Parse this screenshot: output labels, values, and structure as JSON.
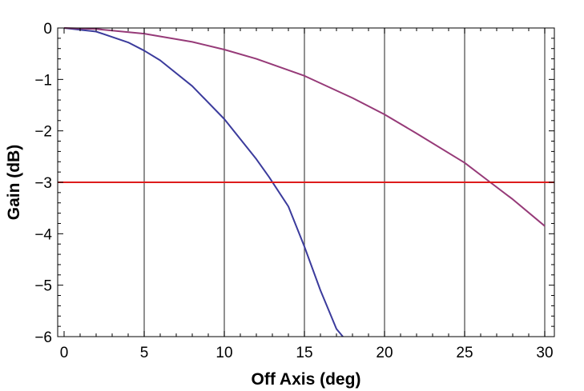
{
  "chart_data": {
    "type": "line",
    "xlabel": "Off Axis (deg)",
    "ylabel": "Gain (dB)",
    "xlim": [
      -0.4,
      30.6
    ],
    "ylim": [
      -6,
      0
    ],
    "x_ticks": [
      0,
      5,
      10,
      15,
      20,
      25,
      30
    ],
    "x_tick_labels": [
      "0",
      "5",
      "10",
      "15",
      "20",
      "25",
      "30"
    ],
    "y_ticks": [
      0,
      -1,
      -2,
      -3,
      -4,
      -5,
      -6
    ],
    "y_tick_labels": [
      "0",
      "−1",
      "−2",
      "−3",
      "−4",
      "−5",
      "−6"
    ],
    "vertical_gridlines_x": [
      5,
      10,
      15,
      20,
      25,
      30
    ],
    "horizontal_reference": {
      "y": -3,
      "color": "#dd1c1c"
    },
    "series": [
      {
        "color": "#3b3b9c",
        "x": [
          0,
          2,
          4,
          5,
          6,
          8,
          10,
          12,
          12.8,
          14,
          15,
          16,
          17,
          17.4
        ],
        "y": [
          0,
          -0.07,
          -0.28,
          -0.44,
          -0.63,
          -1.13,
          -1.77,
          -2.55,
          -2.9,
          -3.47,
          -4.25,
          -5.1,
          -5.85,
          -6.0
        ]
      },
      {
        "color": "#963a78",
        "x": [
          0,
          2,
          5,
          8,
          10,
          12,
          15,
          18,
          20,
          22,
          25,
          26.6,
          28,
          30
        ],
        "y": [
          0,
          -0.02,
          -0.11,
          -0.27,
          -0.42,
          -0.6,
          -0.93,
          -1.36,
          -1.68,
          -2.05,
          -2.62,
          -3.0,
          -3.33,
          -3.85
        ]
      }
    ]
  }
}
